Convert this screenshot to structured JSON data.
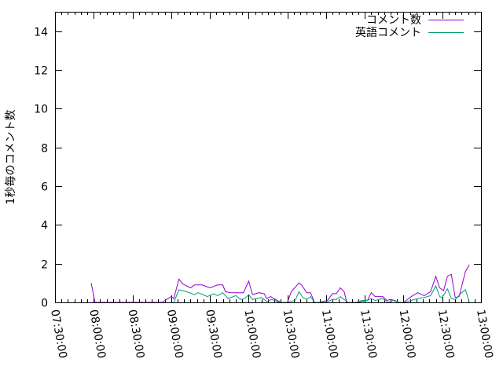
{
  "chart_data": {
    "type": "line",
    "title": "",
    "xlabel": "",
    "ylabel": "1秒毎のコメント数",
    "ylim": [
      0,
      15
    ],
    "yticks": [
      "0",
      "2",
      "4",
      "6",
      "8",
      "10",
      "12",
      "14"
    ],
    "xlim": [
      "07:30:00",
      "13:00:00"
    ],
    "xticks": [
      "07:30:00",
      "08:00:00",
      "08:30:00",
      "09:00:00",
      "09:30:00",
      "10:00:00",
      "10:30:00",
      "11:00:00",
      "11:30:00",
      "12:00:00",
      "12:30:00",
      "13:00:00"
    ],
    "grid": false,
    "legend_position": "top-right",
    "series": [
      {
        "name": "コメント数",
        "color": "#9400d3",
        "points": [
          [
            "07:58",
            1.0
          ],
          [
            "08:01",
            0
          ],
          [
            "08:53",
            0
          ],
          [
            "09:00",
            0.3
          ],
          [
            "09:02",
            0.2
          ],
          [
            "09:06",
            1.2
          ],
          [
            "09:09",
            0.95
          ],
          [
            "09:15",
            0.75
          ],
          [
            "09:18",
            0.9
          ],
          [
            "09:24",
            0.9
          ],
          [
            "09:30",
            0.75
          ],
          [
            "09:36",
            0.9
          ],
          [
            "09:40",
            0.9
          ],
          [
            "09:42",
            0.55
          ],
          [
            "09:46",
            0.5
          ],
          [
            "09:56",
            0.5
          ],
          [
            "10:00",
            1.1
          ],
          [
            "10:03",
            0.4
          ],
          [
            "10:08",
            0.5
          ],
          [
            "10:12",
            0.45
          ],
          [
            "10:14",
            0.2
          ],
          [
            "10:17",
            0.3
          ],
          [
            "10:22",
            0.1
          ],
          [
            "10:25",
            0
          ],
          [
            "10:30",
            0
          ],
          [
            "10:33",
            0.55
          ],
          [
            "10:39",
            1.0
          ],
          [
            "10:41",
            0.9
          ],
          [
            "10:45",
            0.5
          ],
          [
            "10:48",
            0.5
          ],
          [
            "10:51",
            0
          ],
          [
            "10:55",
            0
          ],
          [
            "11:01",
            0.1
          ],
          [
            "11:05",
            0.45
          ],
          [
            "11:08",
            0.45
          ],
          [
            "11:11",
            0.75
          ],
          [
            "11:14",
            0.55
          ],
          [
            "11:16",
            0
          ],
          [
            "11:23",
            0
          ],
          [
            "11:32",
            0.1
          ],
          [
            "11:35",
            0.5
          ],
          [
            "11:38",
            0.3
          ],
          [
            "11:44",
            0.3
          ],
          [
            "11:47",
            0.1
          ],
          [
            "11:50",
            0.15
          ],
          [
            "11:53",
            0.1
          ],
          [
            "11:56",
            0
          ],
          [
            "12:00",
            0
          ],
          [
            "12:06",
            0.3
          ],
          [
            "12:11",
            0.5
          ],
          [
            "12:16",
            0.35
          ],
          [
            "12:21",
            0.55
          ],
          [
            "12:25",
            1.35
          ],
          [
            "12:28",
            0.75
          ],
          [
            "12:31",
            0.6
          ],
          [
            "12:34",
            1.35
          ],
          [
            "12:37",
            1.45
          ],
          [
            "12:40",
            0.25
          ],
          [
            "12:43",
            0.3
          ],
          [
            "12:48",
            1.6
          ],
          [
            "12:51",
            1.95
          ]
        ]
      },
      {
        "name": "英語コメント",
        "color": "#009e73",
        "points": [
          [
            "09:02",
            0
          ],
          [
            "09:06",
            0.65
          ],
          [
            "09:12",
            0.55
          ],
          [
            "09:18",
            0.4
          ],
          [
            "09:21",
            0.5
          ],
          [
            "09:28",
            0.3
          ],
          [
            "09:33",
            0.45
          ],
          [
            "09:36",
            0.35
          ],
          [
            "09:40",
            0.5
          ],
          [
            "09:44",
            0.2
          ],
          [
            "09:50",
            0.35
          ],
          [
            "09:54",
            0.15
          ],
          [
            "09:57",
            0.2
          ],
          [
            "10:00",
            0.4
          ],
          [
            "10:03",
            0.15
          ],
          [
            "10:10",
            0.25
          ],
          [
            "10:14",
            0.05
          ],
          [
            "10:18",
            0.15
          ],
          [
            "10:20",
            0.1
          ],
          [
            "10:24",
            0
          ],
          [
            "10:30",
            0
          ],
          [
            "10:36",
            0.1
          ],
          [
            "10:39",
            0.55
          ],
          [
            "10:42",
            0.25
          ],
          [
            "10:45",
            0.15
          ],
          [
            "10:48",
            0.3
          ],
          [
            "10:51",
            0
          ],
          [
            "11:00",
            0
          ],
          [
            "11:05",
            0.15
          ],
          [
            "11:08",
            0.15
          ],
          [
            "11:11",
            0.3
          ],
          [
            "11:15",
            0.1
          ],
          [
            "11:17",
            0
          ],
          [
            "11:23",
            0
          ],
          [
            "11:28",
            0.1
          ],
          [
            "11:32",
            0.1
          ],
          [
            "11:35",
            0.2
          ],
          [
            "11:38",
            0.1
          ],
          [
            "11:44",
            0.2
          ],
          [
            "11:48",
            0
          ],
          [
            "11:52",
            0.1
          ],
          [
            "11:56",
            0
          ],
          [
            "12:01",
            0
          ],
          [
            "12:11",
            0.2
          ],
          [
            "12:16",
            0.25
          ],
          [
            "12:21",
            0.35
          ],
          [
            "12:25",
            0.85
          ],
          [
            "12:28",
            0.3
          ],
          [
            "12:30",
            0.25
          ],
          [
            "12:34",
            0.7
          ],
          [
            "12:37",
            0.2
          ],
          [
            "12:40",
            0.15
          ],
          [
            "12:45",
            0.5
          ],
          [
            "12:48",
            0.65
          ],
          [
            "12:51",
            0
          ]
        ]
      }
    ]
  }
}
